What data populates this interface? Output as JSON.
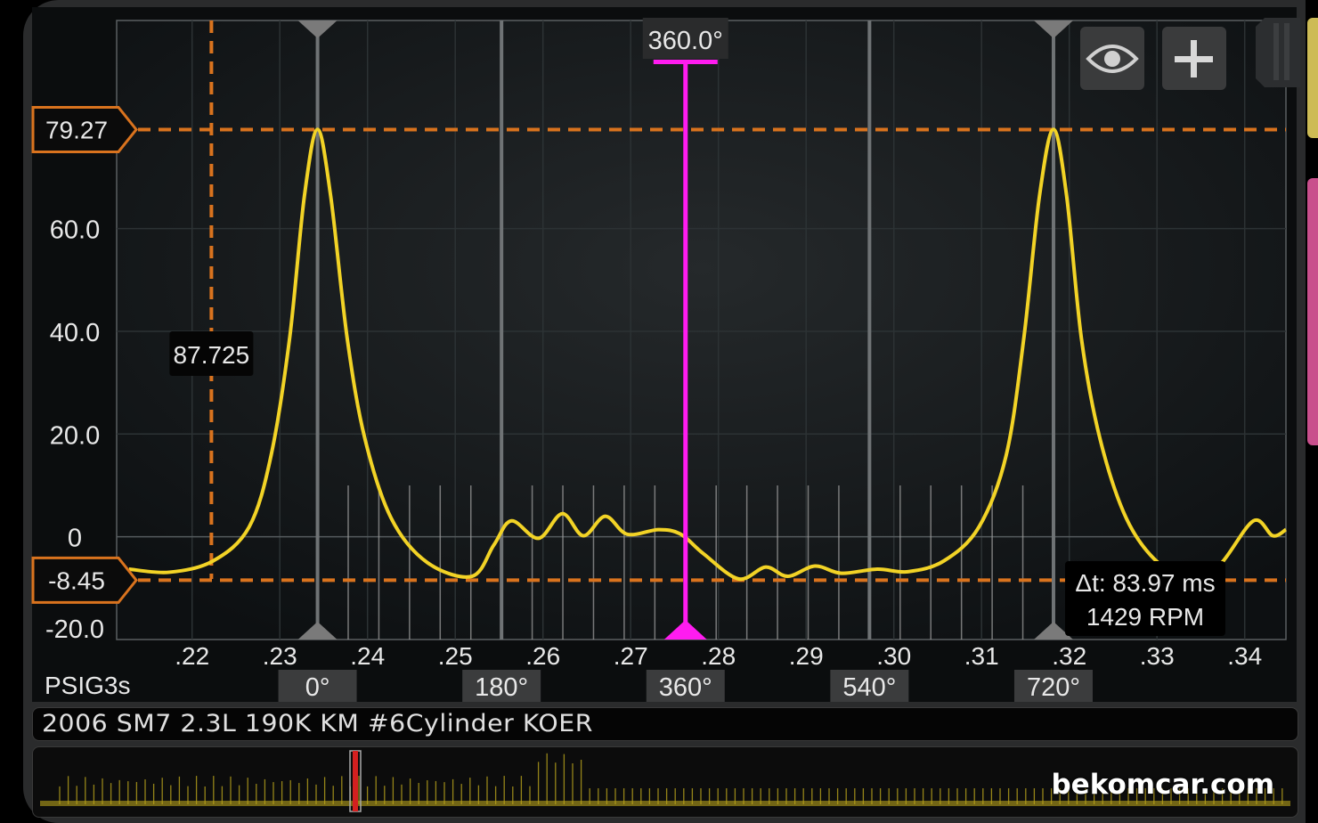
{
  "chart_data": {
    "type": "line",
    "xlabel": "PSIG3s",
    "ylabel": "",
    "xlim": [
      0.2114,
      0.3447
    ],
    "ylim": [
      -20,
      100.5
    ],
    "grid": true,
    "x_tick_labels": [
      ".22",
      ".23",
      ".24",
      ".25",
      ".26",
      ".27",
      ".28",
      ".29",
      ".30",
      ".31",
      ".32",
      ".33",
      ".34"
    ],
    "x_ticks": [
      0.22,
      0.23,
      0.24,
      0.25,
      0.26,
      0.27,
      0.28,
      0.29,
      0.3,
      0.31,
      0.32,
      0.33,
      0.34
    ],
    "y_tick_labels": [
      "60.0",
      "40.0",
      "20.0",
      "0",
      "-20.0"
    ],
    "y_ticks": [
      60,
      40,
      20,
      0,
      -20
    ],
    "series": [
      {
        "color": "#f2d326",
        "x": [
          0.2128,
          0.2174,
          0.2224,
          0.2265,
          0.229,
          0.2311,
          0.2328,
          0.2343,
          0.2358,
          0.2377,
          0.2397,
          0.2427,
          0.2468,
          0.2519,
          0.2544,
          0.2564,
          0.2595,
          0.2622,
          0.2646,
          0.2671,
          0.2696,
          0.2732,
          0.2757,
          0.2783,
          0.2823,
          0.2854,
          0.2879,
          0.291,
          0.294,
          0.2981,
          0.3016,
          0.3057,
          0.3097,
          0.3128,
          0.3148,
          0.3166,
          0.3182,
          0.3197,
          0.3214,
          0.3235,
          0.3265,
          0.3301,
          0.3341,
          0.3372,
          0.341,
          0.3432,
          0.3447
        ],
        "y": [
          -6.3,
          -6.9,
          -4.7,
          1.9,
          15.8,
          38.4,
          66.3,
          79.3,
          66.3,
          38.4,
          19.1,
          3.6,
          -5.0,
          -7.7,
          -1.6,
          3.1,
          -0.3,
          4.5,
          0.2,
          4.0,
          0.5,
          1.4,
          0.5,
          -3.3,
          -8.2,
          -5.9,
          -7.7,
          -5.7,
          -7.1,
          -6.3,
          -6.8,
          -4.7,
          1.9,
          15.8,
          38.4,
          66.3,
          79.3,
          66.3,
          38.4,
          19.1,
          3.6,
          -5.0,
          -8.2,
          -5.4,
          3.1,
          0.2,
          1.4
        ]
      }
    ],
    "cursors": {
      "color": "#d9731e",
      "horizontal": [
        {
          "value": 79.27,
          "label": "79.27"
        },
        {
          "value": -8.45,
          "label": "-8.45"
        }
      ],
      "vertical": {
        "x": 0.2222,
        "label": "87.725"
      }
    },
    "degree_markers": {
      "color": "#8a8a8a",
      "t_zero": 0.2343,
      "t_720": 0.3182,
      "labels": [
        {
          "deg": 0,
          "label": "0°"
        },
        {
          "deg": 180,
          "label": "180°"
        },
        {
          "deg": 360,
          "label": "360°"
        },
        {
          "deg": 540,
          "label": "540°"
        },
        {
          "deg": 720,
          "label": "720°"
        }
      ],
      "minor_step_deg": 30
    },
    "active_marker": {
      "deg": 360,
      "label": "360.0°",
      "color": "#ff1cf0"
    },
    "delta": {
      "dt_label": "Δt: 83.97 ms",
      "rpm_label": "1429 RPM"
    }
  },
  "toolbar": {
    "eye_icon": "eye-icon",
    "plus_icon": "plus-icon"
  },
  "title": "2006 SM7 2.3L 190K KM #6Cylinder KOER",
  "watermark": "bekomcar.com",
  "overview": {
    "trace_color": "#b8a21c",
    "marker_color": "#d42020"
  }
}
